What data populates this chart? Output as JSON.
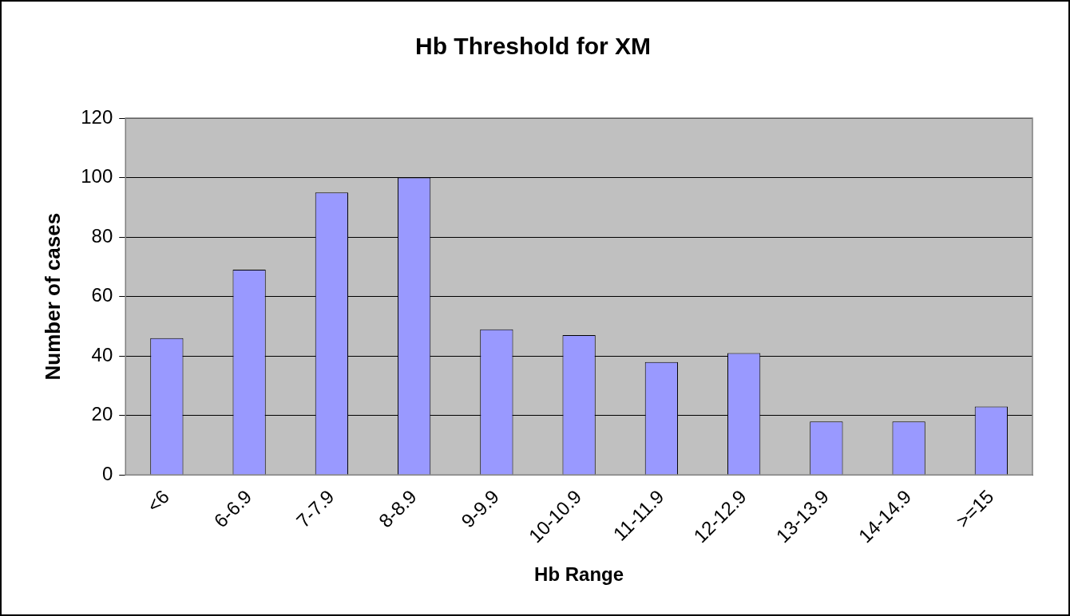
{
  "chart_data": {
    "type": "bar",
    "title": "Hb Threshold for XM",
    "xlabel": "Hb Range",
    "ylabel": "Number of cases",
    "categories": [
      "<6",
      "6-6.9",
      "7-7.9",
      "8-8.9",
      "9-9.9",
      "10-10.9",
      "11-11.9",
      "12-12.9",
      "13-13.9",
      "14-14.9",
      ">=15"
    ],
    "values": [
      46,
      69,
      95,
      100,
      49,
      47,
      38,
      41,
      18,
      18,
      23
    ],
    "color": "#9999ff",
    "ylim": [
      0,
      120
    ],
    "yticks": [
      0,
      20,
      40,
      60,
      80,
      100,
      120
    ],
    "grid": "y",
    "legend": false
  }
}
